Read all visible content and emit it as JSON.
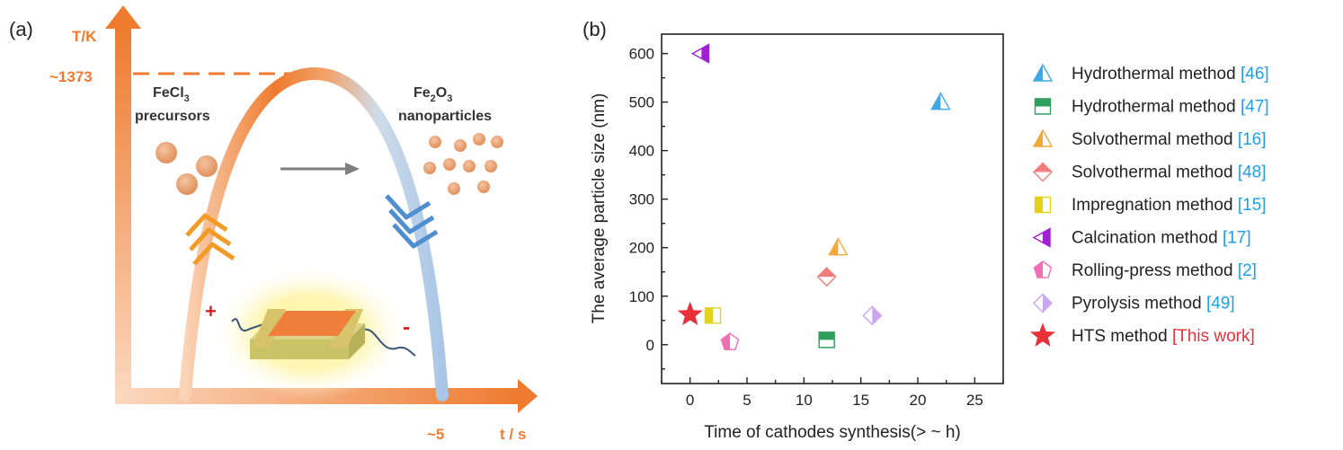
{
  "panel_a": {
    "label": "(a)",
    "y_axis_label": "T/K",
    "x_axis_label": "t / s",
    "peak_temp_label": "~1373",
    "time_label": "~5",
    "precursor_line1": "FeCl",
    "precursor_sub": "3",
    "precursor_line2": "precursors",
    "product_line1a": "Fe",
    "product_sub1": "2",
    "product_line1b": "O",
    "product_sub2": "3",
    "product_line2": "nanoparticles",
    "plus_sign": "+",
    "minus_sign": "-",
    "colors": {
      "heat": "#ee7b2f",
      "cool": "#6a9fd4",
      "arrow": "#7f7f7f",
      "particle": "#e89a6a",
      "sign": "#e0201f"
    }
  },
  "panel_b": {
    "label": "(b)"
  },
  "chart_data": {
    "type": "scatter",
    "xlabel": "Time of cathodes synthesis(> ~ h)",
    "ylabel": "The average particle size (nm)",
    "xlim": [
      -2.5,
      27.5
    ],
    "ylim": [
      -80,
      640
    ],
    "xticks": [
      0,
      5,
      10,
      15,
      20,
      25
    ],
    "yticks": [
      0,
      100,
      200,
      300,
      400,
      500,
      600
    ],
    "grid": false,
    "legend_position": "right",
    "series": [
      {
        "name": "Hydrothermal method",
        "ref": "[46]",
        "marker": "triangle-up",
        "color": "#3fa9e6",
        "x": [
          22
        ],
        "y": [
          500
        ]
      },
      {
        "name": "Hydrothermal method",
        "ref": "[47]",
        "marker": "square",
        "color": "#2f9e5a",
        "x": [
          12
        ],
        "y": [
          10
        ]
      },
      {
        "name": "Solvothermal method",
        "ref": "[16]",
        "marker": "triangle-up",
        "color": "#f2a93b",
        "x": [
          13
        ],
        "y": [
          200
        ]
      },
      {
        "name": "Solvothermal method",
        "ref": "[48]",
        "marker": "diamond",
        "color": "#f07c7c",
        "x": [
          12
        ],
        "y": [
          140
        ]
      },
      {
        "name": "Impregnation method",
        "ref": "[15]",
        "marker": "square",
        "color": "#e3d21c",
        "x": [
          2
        ],
        "y": [
          60
        ]
      },
      {
        "name": "Calcination method",
        "ref": "[17]",
        "marker": "triangle-left",
        "color": "#a21fd6",
        "x": [
          1
        ],
        "y": [
          600
        ]
      },
      {
        "name": "Rolling-press method",
        "ref": "[2]",
        "marker": "pentagon",
        "color": "#f06fb4",
        "x": [
          3.5
        ],
        "y": [
          5
        ]
      },
      {
        "name": "Pyrolysis method",
        "ref": "[49]",
        "marker": "diamond",
        "color": "#c9a6ef",
        "x": [
          16
        ],
        "y": [
          60
        ]
      },
      {
        "name": "HTS method",
        "ref": "[This work]",
        "marker": "star",
        "color": "#e8313a",
        "x": [
          0
        ],
        "y": [
          62
        ]
      }
    ],
    "ref_color": "#1ea0e8",
    "this_work_color": "#e8313a"
  }
}
